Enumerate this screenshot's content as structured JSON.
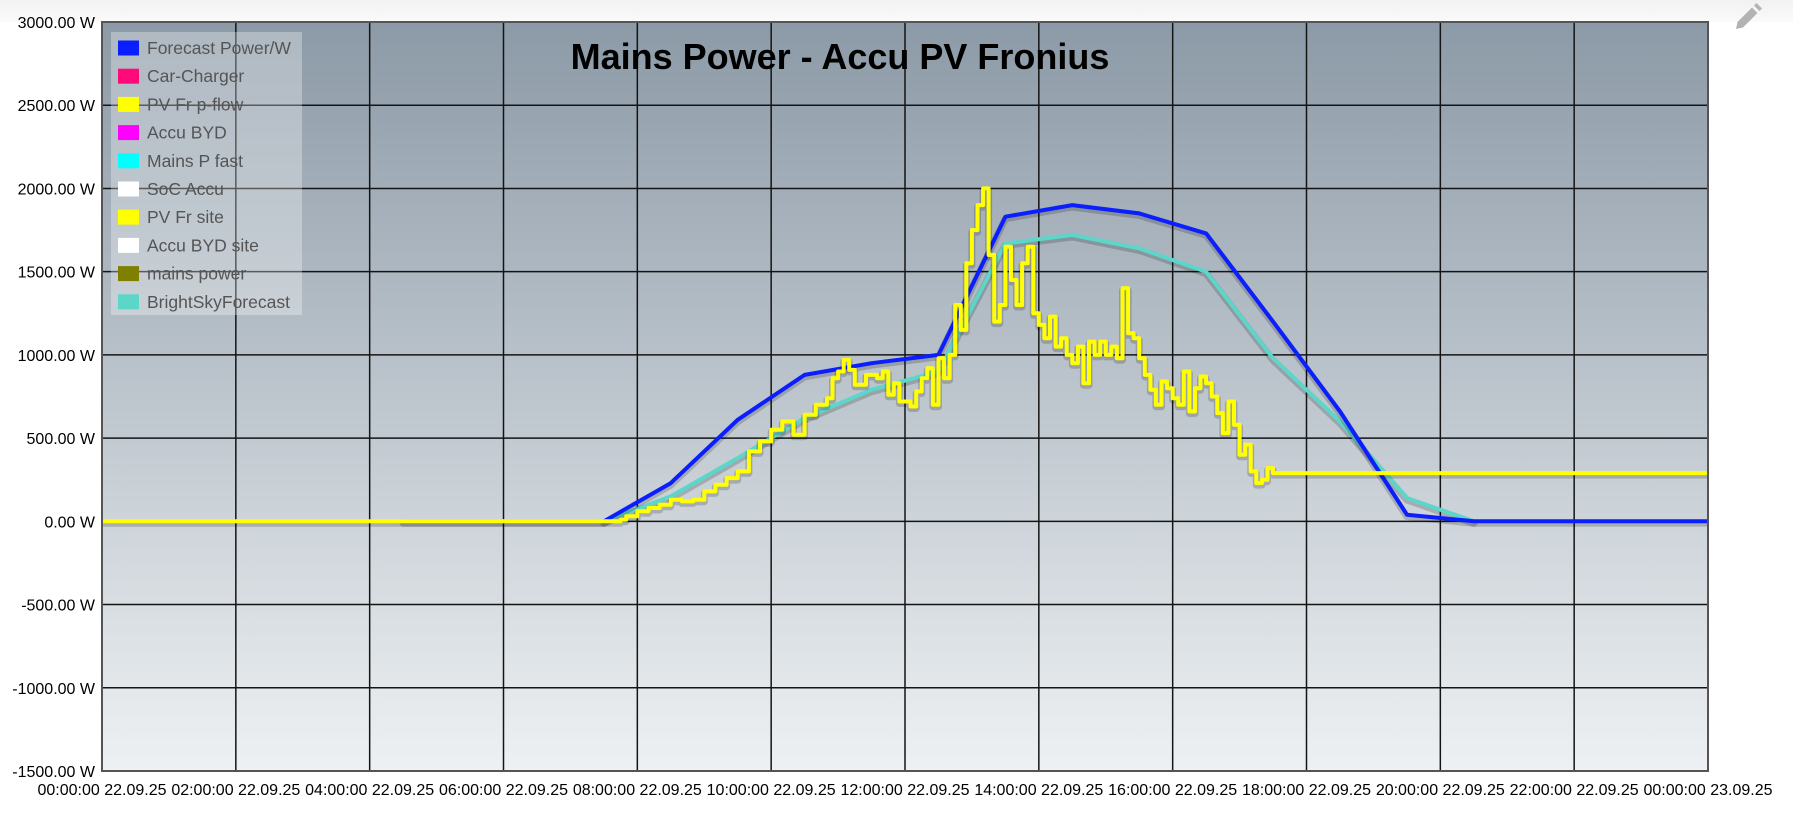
{
  "colors": {
    "plot_top": "#8c9aa7",
    "plot_bottom": "#eef1f3",
    "grid": "#141414",
    "edit_icon": "#b3b3b3"
  },
  "chart_data": {
    "type": "line",
    "title": "Mains Power - Accu PV Fronius",
    "y_unit": "W",
    "ylim": [
      -1500,
      3000
    ],
    "y_ticks": [
      {
        "value": 3000,
        "label": "3000.00 W"
      },
      {
        "value": 2500,
        "label": "2500.00 W"
      },
      {
        "value": 2000,
        "label": "2000.00 W"
      },
      {
        "value": 1500,
        "label": "1500.00 W"
      },
      {
        "value": 1000,
        "label": "1000.00 W"
      },
      {
        "value": 500,
        "label": "500.00 W"
      },
      {
        "value": 0,
        "label": "0.00 W"
      },
      {
        "value": -500,
        "label": "-500.00 W"
      },
      {
        "value": -1000,
        "label": "-1000.00 W"
      },
      {
        "value": -1500,
        "label": "-1500.00 W"
      }
    ],
    "xlim": [
      "00:00",
      "24:00"
    ],
    "x_ticks": [
      {
        "value": "00:00",
        "label": "00:00:00 22.09.25"
      },
      {
        "value": "02:00",
        "label": "02:00:00 22.09.25"
      },
      {
        "value": "04:00",
        "label": "04:00:00 22.09.25"
      },
      {
        "value": "06:00",
        "label": "06:00:00 22.09.25"
      },
      {
        "value": "08:00",
        "label": "08:00:00 22.09.25"
      },
      {
        "value": "10:00",
        "label": "10:00:00 22.09.25"
      },
      {
        "value": "12:00",
        "label": "12:00:00 22.09.25"
      },
      {
        "value": "14:00",
        "label": "14:00:00 22.09.25"
      },
      {
        "value": "16:00",
        "label": "16:00:00 22.09.25"
      },
      {
        "value": "18:00",
        "label": "18:00:00 22.09.25"
      },
      {
        "value": "20:00",
        "label": "20:00:00 22.09.25"
      },
      {
        "value": "22:00",
        "label": "22:00:00 22.09.25"
      },
      {
        "value": "24:00",
        "label": "00:00:00 23.09.25"
      }
    ],
    "grid": true,
    "legend_position": "top-left",
    "legend": [
      {
        "name": "Forecast Power/W",
        "color": "#0a1eff"
      },
      {
        "name": "Car-Charger",
        "color": "#ff0a78"
      },
      {
        "name": "PV Fr p-flow",
        "color": "#ffff00"
      },
      {
        "name": "Accu BYD",
        "color": "#ff00ff"
      },
      {
        "name": "Mains P fast",
        "color": "#00ffff"
      },
      {
        "name": "SoC Accu",
        "color": "#ffffff"
      },
      {
        "name": "PV Fr site",
        "color": "#ffff00"
      },
      {
        "name": "Accu BYD site",
        "color": "#ffffff"
      },
      {
        "name": "mains power",
        "color": "#7f7f00"
      },
      {
        "name": "BrightSkyForecast",
        "color": "#5cd6c8"
      }
    ],
    "series": [
      {
        "name": "BrightSkyForecast",
        "color": "#5cd6c8",
        "step": false,
        "points": [
          [
            "04:30",
            0
          ],
          [
            "07:30",
            0
          ],
          [
            "08:30",
            150
          ],
          [
            "09:30",
            380
          ],
          [
            "10:30",
            620
          ],
          [
            "11:30",
            790
          ],
          [
            "12:30",
            900
          ],
          [
            "13:30",
            1670
          ],
          [
            "14:30",
            1720
          ],
          [
            "15:30",
            1640
          ],
          [
            "16:30",
            1500
          ],
          [
            "17:30",
            980
          ],
          [
            "18:30",
            600
          ],
          [
            "19:30",
            140
          ],
          [
            "20:30",
            0
          ]
        ]
      },
      {
        "name": "Forecast Power/W",
        "color": "#0a1eff",
        "step": false,
        "points": [
          [
            "07:30",
            0
          ],
          [
            "08:30",
            230
          ],
          [
            "09:30",
            610
          ],
          [
            "10:30",
            880
          ],
          [
            "11:30",
            950
          ],
          [
            "12:30",
            1000
          ],
          [
            "13:30",
            1830
          ],
          [
            "14:30",
            1900
          ],
          [
            "15:30",
            1850
          ],
          [
            "16:30",
            1730
          ],
          [
            "17:30",
            1200
          ],
          [
            "18:30",
            660
          ],
          [
            "19:30",
            40
          ],
          [
            "20:30",
            0
          ],
          [
            "24:00",
            0
          ]
        ]
      },
      {
        "name": "PV Fr site",
        "color": "#ffff00",
        "step": true,
        "points": [
          [
            "00:00",
            0
          ],
          [
            "07:30",
            0
          ],
          [
            "07:45",
            10
          ],
          [
            "07:50",
            30
          ],
          [
            "08:00",
            60
          ],
          [
            "08:10",
            80
          ],
          [
            "08:20",
            100
          ],
          [
            "08:30",
            130
          ],
          [
            "08:40",
            120
          ],
          [
            "08:50",
            130
          ],
          [
            "09:00",
            180
          ],
          [
            "09:10",
            220
          ],
          [
            "09:20",
            260
          ],
          [
            "09:30",
            300
          ],
          [
            "09:40",
            420
          ],
          [
            "09:50",
            480
          ],
          [
            "10:00",
            550
          ],
          [
            "10:10",
            600
          ],
          [
            "10:20",
            520
          ],
          [
            "10:30",
            640
          ],
          [
            "10:40",
            700
          ],
          [
            "10:50",
            740
          ],
          [
            "10:55",
            860
          ],
          [
            "11:00",
            900
          ],
          [
            "11:05",
            970
          ],
          [
            "11:10",
            910
          ],
          [
            "11:15",
            820
          ],
          [
            "11:25",
            880
          ],
          [
            "11:35",
            860
          ],
          [
            "11:40",
            900
          ],
          [
            "11:45",
            760
          ],
          [
            "11:50",
            830
          ],
          [
            "11:55",
            720
          ],
          [
            "12:05",
            690
          ],
          [
            "12:10",
            780
          ],
          [
            "12:15",
            860
          ],
          [
            "12:20",
            920
          ],
          [
            "12:25",
            700
          ],
          [
            "12:30",
            980
          ],
          [
            "12:35",
            860
          ],
          [
            "12:40",
            1000
          ],
          [
            "12:45",
            1300
          ],
          [
            "12:50",
            1150
          ],
          [
            "12:55",
            1550
          ],
          [
            "13:00",
            1750
          ],
          [
            "13:05",
            1900
          ],
          [
            "13:10",
            2000
          ],
          [
            "13:15",
            1600
          ],
          [
            "13:20",
            1200
          ],
          [
            "13:25",
            1300
          ],
          [
            "13:30",
            1650
          ],
          [
            "13:35",
            1450
          ],
          [
            "13:40",
            1300
          ],
          [
            "13:45",
            1550
          ],
          [
            "13:50",
            1650
          ],
          [
            "13:55",
            1250
          ],
          [
            "14:00",
            1180
          ],
          [
            "14:05",
            1100
          ],
          [
            "14:10",
            1230
          ],
          [
            "14:15",
            1050
          ],
          [
            "14:20",
            1100
          ],
          [
            "14:25",
            1000
          ],
          [
            "14:30",
            950
          ],
          [
            "14:35",
            1050
          ],
          [
            "14:40",
            830
          ],
          [
            "14:45",
            1080
          ],
          [
            "14:50",
            1000
          ],
          [
            "14:55",
            1080
          ],
          [
            "15:00",
            1000
          ],
          [
            "15:05",
            1050
          ],
          [
            "15:10",
            980
          ],
          [
            "15:15",
            1400
          ],
          [
            "15:20",
            1130
          ],
          [
            "15:25",
            1100
          ],
          [
            "15:30",
            980
          ],
          [
            "15:35",
            880
          ],
          [
            "15:40",
            790
          ],
          [
            "15:45",
            700
          ],
          [
            "15:50",
            840
          ],
          [
            "15:55",
            800
          ],
          [
            "16:00",
            740
          ],
          [
            "16:05",
            700
          ],
          [
            "16:10",
            900
          ],
          [
            "16:15",
            660
          ],
          [
            "16:20",
            800
          ],
          [
            "16:25",
            870
          ],
          [
            "16:30",
            830
          ],
          [
            "16:35",
            750
          ],
          [
            "16:40",
            650
          ],
          [
            "16:45",
            530
          ],
          [
            "16:50",
            720
          ],
          [
            "16:55",
            580
          ],
          [
            "17:00",
            400
          ],
          [
            "17:05",
            460
          ],
          [
            "17:10",
            300
          ],
          [
            "17:15",
            230
          ],
          [
            "17:20",
            250
          ],
          [
            "17:25",
            320
          ],
          [
            "17:30",
            290
          ],
          [
            "24:00",
            290
          ]
        ]
      }
    ]
  }
}
